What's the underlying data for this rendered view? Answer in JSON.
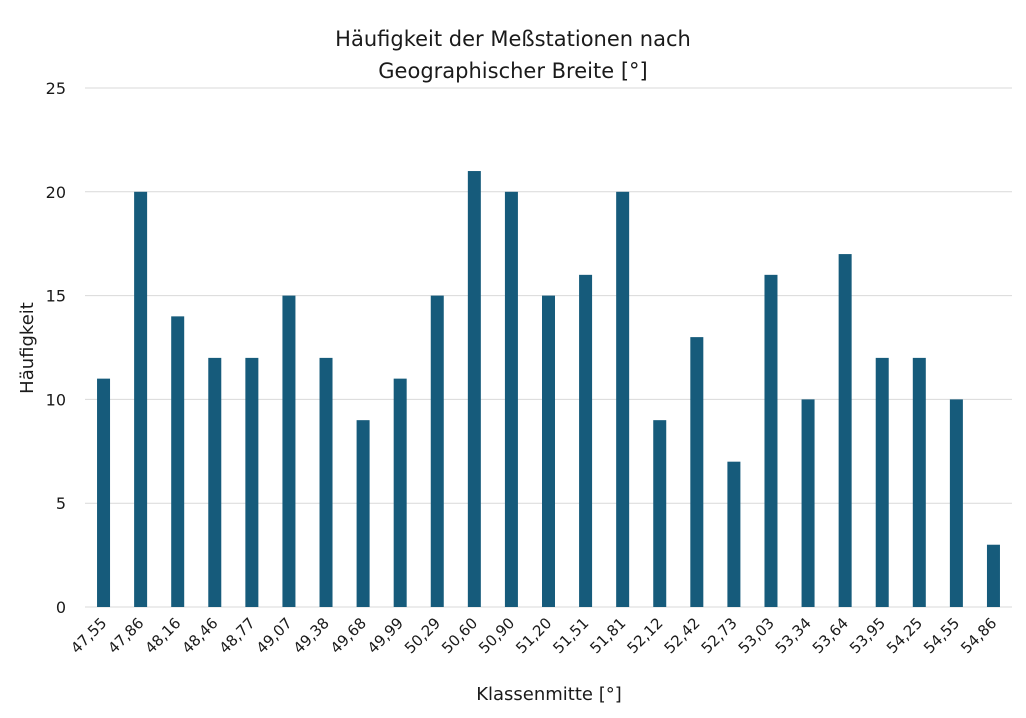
{
  "chart_data": {
    "type": "bar",
    "title_lines": [
      "Häufigkeit der Meßstationen nach",
      "Geographischer Breite [°]"
    ],
    "xlabel": "Klassenmitte [°]",
    "ylabel": "Häufigkeit",
    "ylim": [
      0,
      25
    ],
    "yticks": [
      "0",
      "5",
      "10",
      "15",
      "20",
      "25"
    ],
    "grid": true,
    "bar_color": "#165b7b",
    "categories": [
      "47,55",
      "47,86",
      "48,16",
      "48,46",
      "48,77",
      "49,07",
      "49,38",
      "49,68",
      "49,99",
      "50,29",
      "50,60",
      "50,90",
      "51,20",
      "51,51",
      "51,81",
      "52,12",
      "52,42",
      "52,73",
      "53,03",
      "53,34",
      "53,64",
      "53,95",
      "54,25",
      "54,55",
      "54,86"
    ],
    "values": [
      11,
      20,
      14,
      12,
      12,
      15,
      12,
      9,
      11,
      15,
      21,
      20,
      15,
      16,
      20,
      9,
      13,
      7,
      16,
      10,
      17,
      12,
      12,
      10,
      3
    ]
  }
}
